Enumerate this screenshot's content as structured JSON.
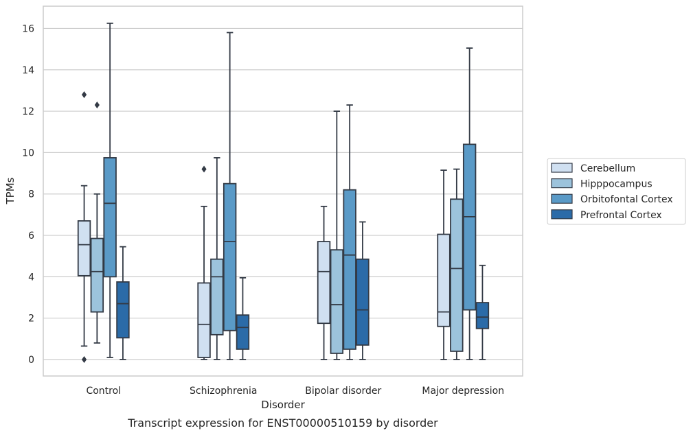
{
  "chart_data": {
    "type": "box",
    "title": "",
    "caption": "Transcript expression for ENST00000510159 by disorder",
    "xlabel": "Disorder",
    "ylabel": "TPMs",
    "ylim": [
      -0.8,
      17.1
    ],
    "yticks": [
      0,
      2,
      4,
      6,
      8,
      10,
      12,
      14,
      16
    ],
    "grid": true,
    "legend_position": "right",
    "categories": [
      "Control",
      "Schizophrenia",
      "Bipolar disorder",
      "Major depression"
    ],
    "series": [
      {
        "name": "Cerebellum",
        "color": "#d0e0f1",
        "boxes": [
          {
            "whisker_low": 0.65,
            "q1": 4.05,
            "median": 5.55,
            "q3": 6.7,
            "whisker_high": 8.4,
            "outliers": [
              12.8,
              0.0
            ]
          },
          {
            "whisker_low": 0.0,
            "q1": 0.1,
            "median": 1.7,
            "q3": 3.7,
            "whisker_high": 7.4,
            "outliers": [
              9.2
            ]
          },
          {
            "whisker_low": 0.0,
            "q1": 1.75,
            "median": 4.25,
            "q3": 5.7,
            "whisker_high": 7.4,
            "outliers": []
          },
          {
            "whisker_low": 0.0,
            "q1": 1.6,
            "median": 2.3,
            "q3": 6.05,
            "whisker_high": 9.15,
            "outliers": []
          }
        ]
      },
      {
        "name": "Hipppocampus",
        "color": "#9cc3dc",
        "boxes": [
          {
            "whisker_low": 0.8,
            "q1": 2.3,
            "median": 4.25,
            "q3": 5.85,
            "whisker_high": 8.0,
            "outliers": [
              12.3
            ]
          },
          {
            "whisker_low": 0.0,
            "q1": 1.2,
            "median": 4.0,
            "q3": 4.85,
            "whisker_high": 9.75,
            "outliers": []
          },
          {
            "whisker_low": 0.0,
            "q1": 0.3,
            "median": 2.65,
            "q3": 5.3,
            "whisker_high": 12.0,
            "outliers": []
          },
          {
            "whisker_low": 0.0,
            "q1": 0.4,
            "median": 4.4,
            "q3": 7.75,
            "whisker_high": 9.2,
            "outliers": []
          }
        ]
      },
      {
        "name": "Orbitofontal Cortex",
        "color": "#5a9ac7",
        "boxes": [
          {
            "whisker_low": 0.1,
            "q1": 4.0,
            "median": 7.55,
            "q3": 9.75,
            "whisker_high": 16.25,
            "outliers": []
          },
          {
            "whisker_low": 0.0,
            "q1": 1.4,
            "median": 5.7,
            "q3": 8.5,
            "whisker_high": 15.8,
            "outliers": []
          },
          {
            "whisker_low": 0.0,
            "q1": 0.5,
            "median": 5.05,
            "q3": 8.2,
            "whisker_high": 12.3,
            "outliers": []
          },
          {
            "whisker_low": 0.0,
            "q1": 2.4,
            "median": 6.9,
            "q3": 10.4,
            "whisker_high": 15.05,
            "outliers": []
          }
        ]
      },
      {
        "name": "Prefrontal Cortex",
        "color": "#2b6ba8",
        "boxes": [
          {
            "whisker_low": 0.0,
            "q1": 1.05,
            "median": 2.7,
            "q3": 3.75,
            "whisker_high": 5.45,
            "outliers": []
          },
          {
            "whisker_low": 0.0,
            "q1": 0.5,
            "median": 1.55,
            "q3": 2.15,
            "whisker_high": 3.95,
            "outliers": []
          },
          {
            "whisker_low": 0.0,
            "q1": 0.7,
            "median": 2.4,
            "q3": 4.85,
            "whisker_high": 6.65,
            "outliers": []
          },
          {
            "whisker_low": 0.0,
            "q1": 1.5,
            "median": 2.05,
            "q3": 2.75,
            "whisker_high": 4.55,
            "outliers": []
          }
        ]
      }
    ]
  }
}
